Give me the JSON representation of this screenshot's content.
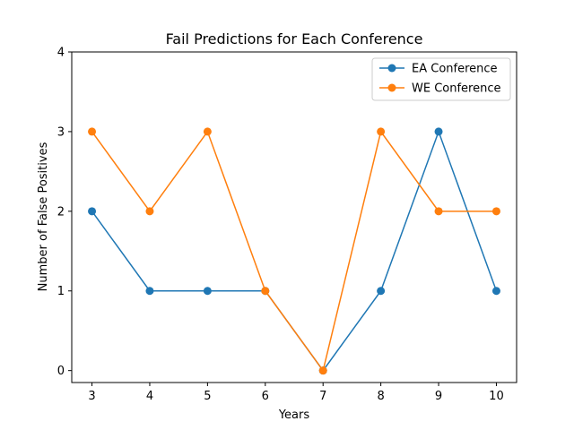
{
  "chart_data": {
    "type": "line",
    "title": "Fail Predictions for Each Conference",
    "xlabel": "Years",
    "ylabel": "Number of False Positives",
    "x": [
      3,
      4,
      5,
      6,
      7,
      8,
      9,
      10
    ],
    "xlim": [
      2.65,
      10.35
    ],
    "ylim": [
      -0.15,
      4.0
    ],
    "xticks": [
      "3",
      "4",
      "5",
      "6",
      "7",
      "8",
      "9",
      "10"
    ],
    "yticks": [
      "0",
      "1",
      "2",
      "3",
      "4"
    ],
    "grid": false,
    "legend_position": "top-right",
    "series": [
      {
        "name": "EA Conference",
        "color": "#1f77b4",
        "values": [
          2,
          1,
          1,
          1,
          0,
          1,
          3,
          1
        ]
      },
      {
        "name": "WE Conference",
        "color": "#ff7f0e",
        "values": [
          3,
          2,
          3,
          1,
          0,
          3,
          2,
          2
        ]
      }
    ]
  }
}
